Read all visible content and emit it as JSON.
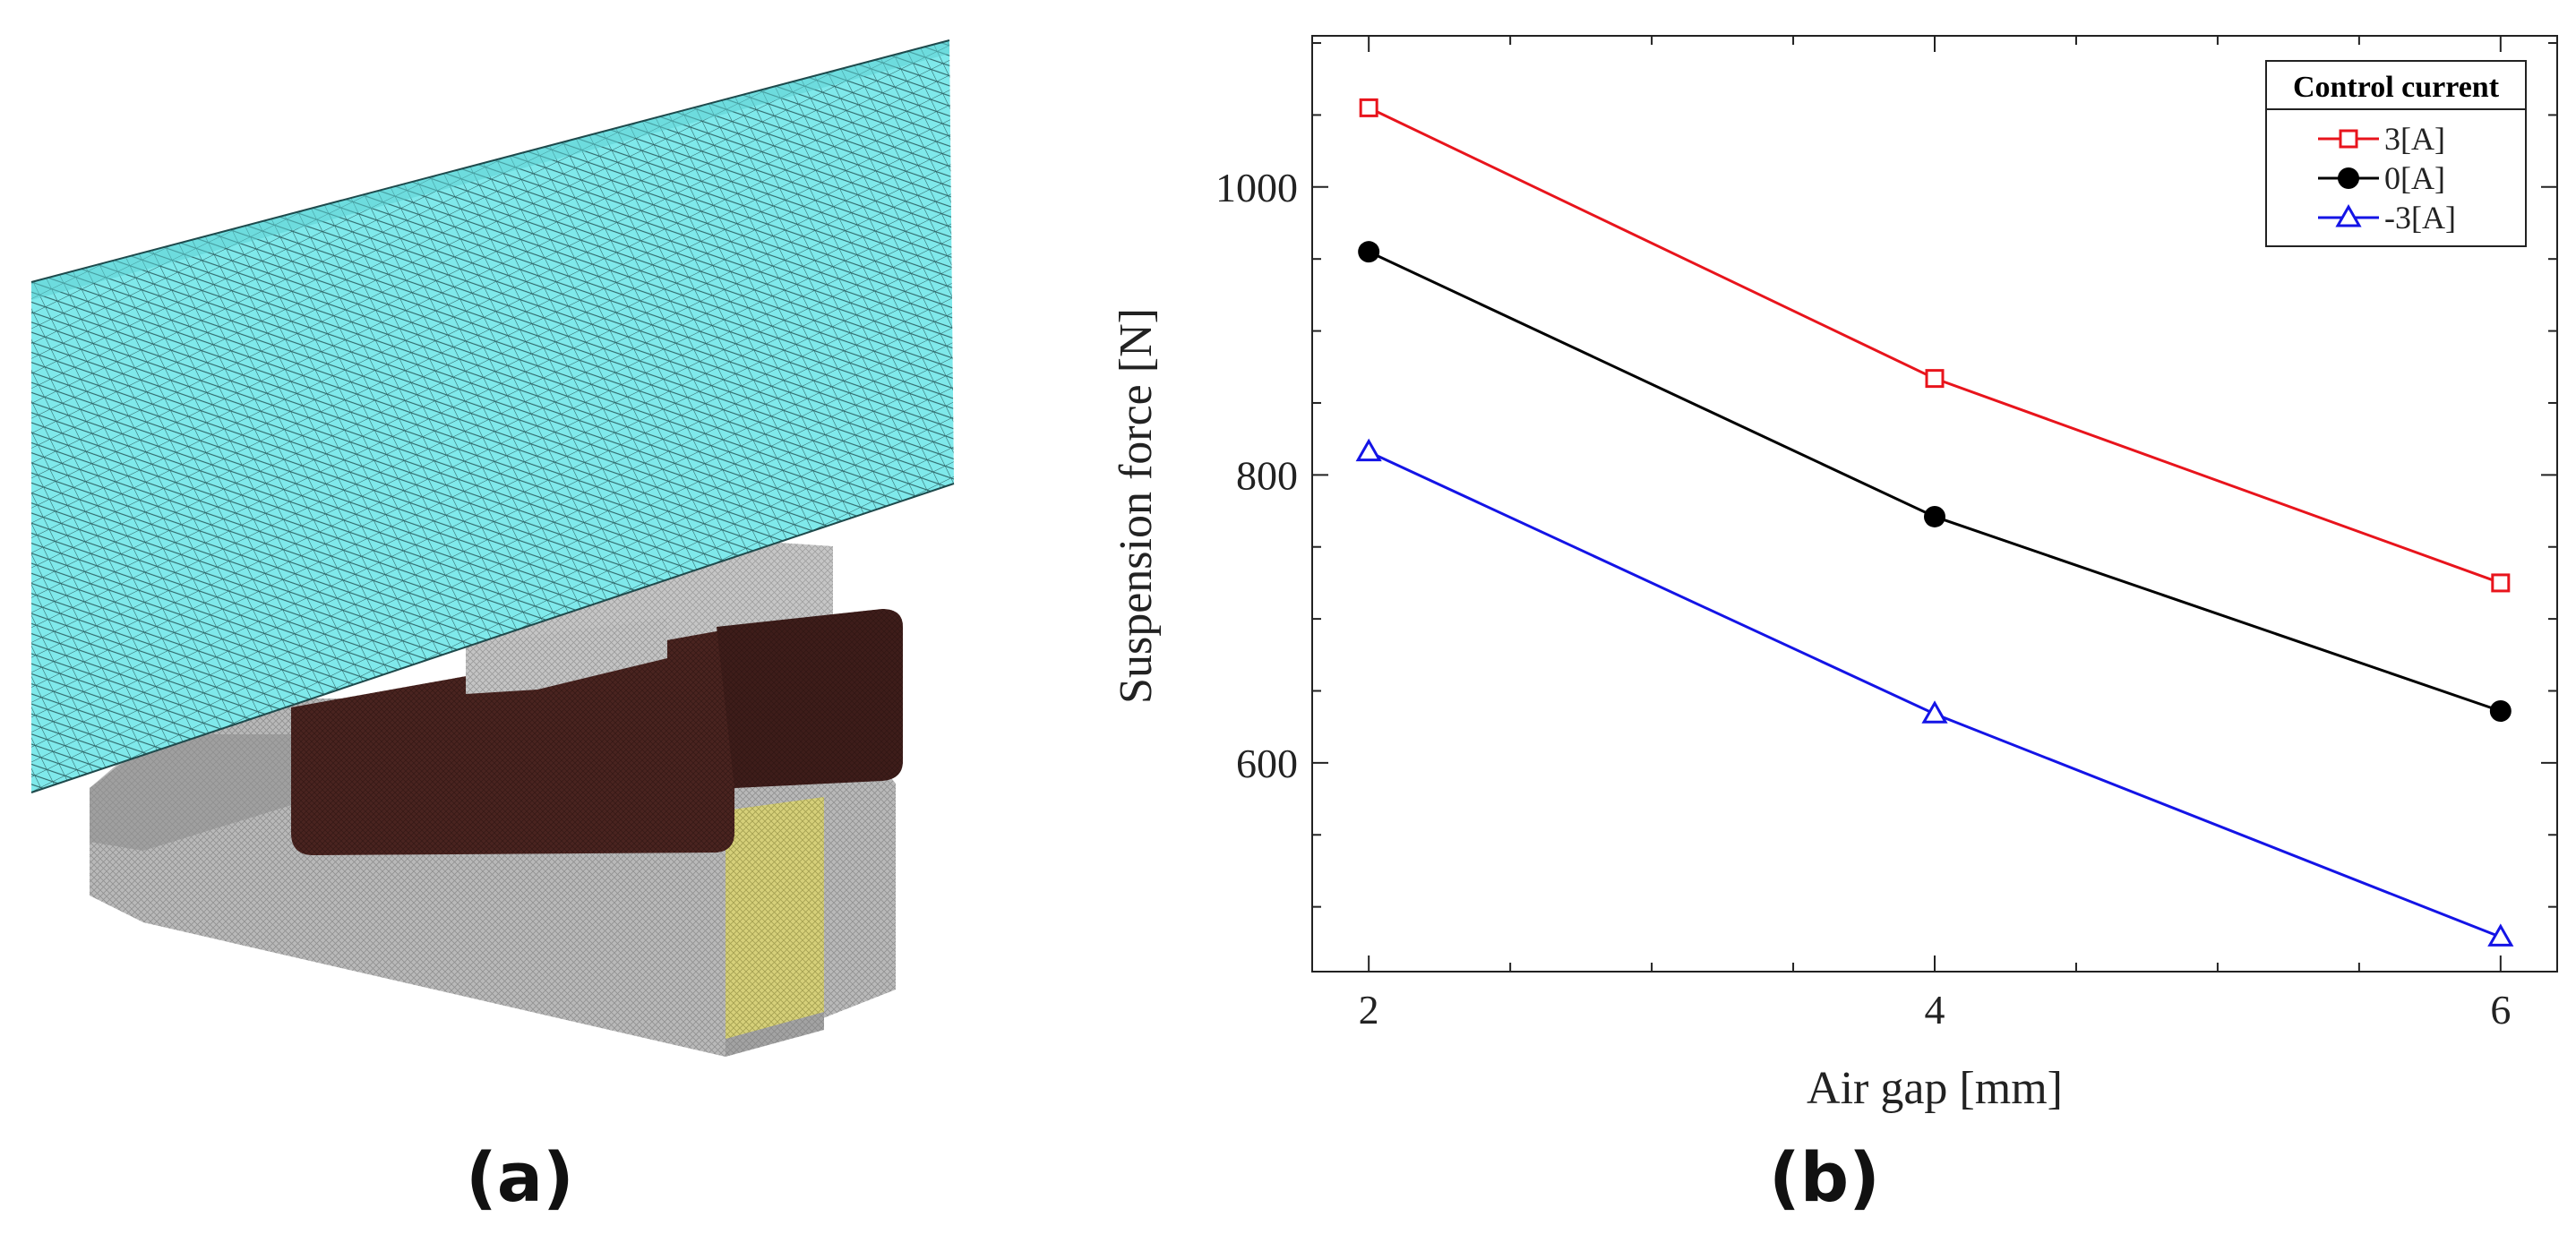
{
  "panels": {
    "a_label": "(a)",
    "b_label": "(b)"
  },
  "colors": {
    "rotor": "#7fe9eb",
    "coil": "#4a2420",
    "core": "#b9b9b9",
    "sensor": "#d6d07a"
  },
  "chart_data": {
    "type": "line",
    "title": "",
    "xlabel": "Air gap [mm]",
    "ylabel": "Suspension force [N]",
    "x": [
      2,
      4,
      6
    ],
    "xlim": [
      1.8,
      6.2
    ],
    "ylim": [
      455,
      1105
    ],
    "xticks": [
      2,
      4,
      6
    ],
    "yticks": [
      600,
      800,
      1000
    ],
    "legend_title": "Control current",
    "legend_position": "top-right",
    "series": [
      {
        "name": "3[A]",
        "values": [
          1055,
          867,
          725
        ],
        "color": "#e8141c",
        "marker": "square-open"
      },
      {
        "name": "0[A]",
        "values": [
          955,
          771,
          636
        ],
        "color": "#000000",
        "marker": "circle-filled"
      },
      {
        "name": "-3[A]",
        "values": [
          816,
          634,
          479
        ],
        "color": "#1414e6",
        "marker": "triangle-open"
      }
    ]
  }
}
